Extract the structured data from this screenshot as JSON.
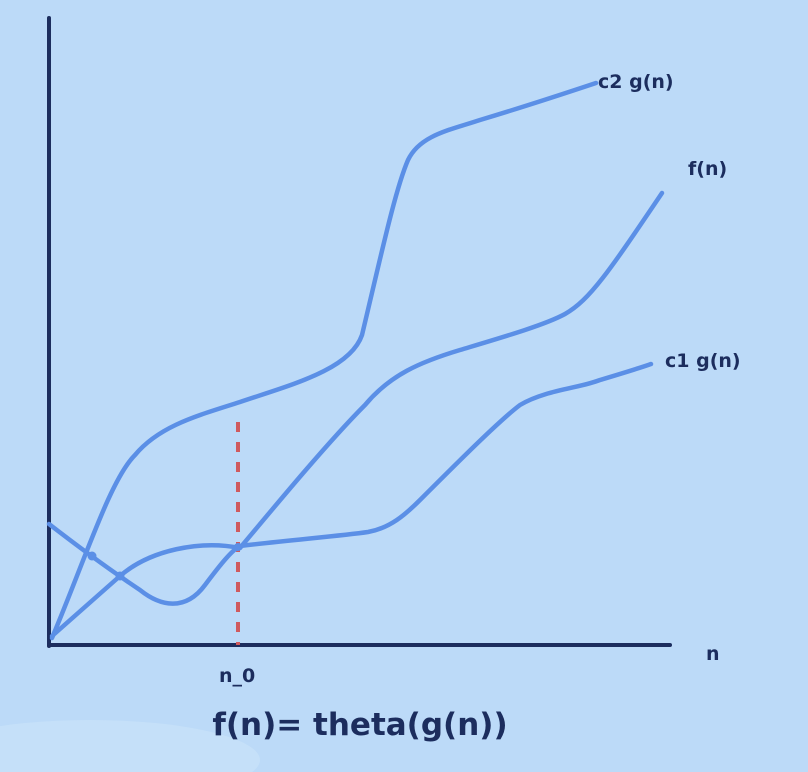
{
  "labels": {
    "upper_curve": "c2 g(n)",
    "middle_curve": "f(n)",
    "lower_curve": "c1 g(n)",
    "x_axis": "n",
    "threshold": "n_0"
  },
  "formula": "f(n)= theta(g(n))",
  "colors": {
    "background": "#bcdaf8",
    "axis": "#1c2d5e",
    "curve": "#5b8fe6",
    "threshold": "#cf5a5e",
    "text": "#1c2d5e"
  }
}
